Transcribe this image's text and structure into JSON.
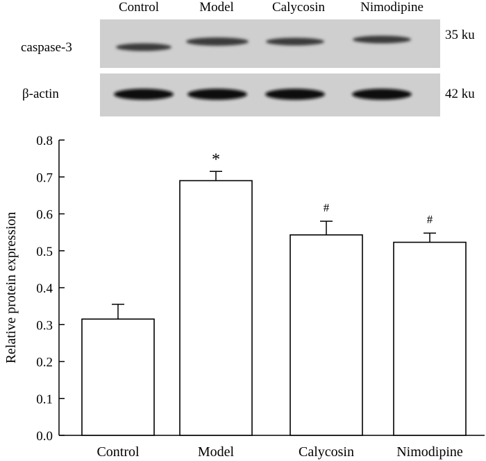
{
  "blot": {
    "lanes": [
      "Control",
      "Model",
      "Calycosin",
      "Nimodipine"
    ],
    "rows": [
      {
        "label": "caspase-3",
        "size": "35 ku",
        "band_color": "#3a3a3a"
      },
      {
        "label": "β-actin",
        "size": "42 ku",
        "band_color": "#111111"
      }
    ],
    "panel_color": "#cfcfcf"
  },
  "chart_data": {
    "type": "bar",
    "categories": [
      "Control",
      "Model",
      "Calycosin",
      "Nimodipine"
    ],
    "values": [
      0.315,
      0.69,
      0.543,
      0.523
    ],
    "errors": [
      0.04,
      0.025,
      0.037,
      0.025
    ],
    "annotations": [
      "",
      "*",
      "#",
      "#"
    ],
    "ylabel": "Relative protein expression",
    "xlabel": "",
    "ylim": [
      0,
      0.8
    ],
    "yticks": [
      "0.0",
      "0.1",
      "0.2",
      "0.3",
      "0.4",
      "0.5",
      "0.6",
      "0.7",
      "0.8"
    ],
    "bar_color": "#ffffff",
    "edge_color": "#000000"
  }
}
